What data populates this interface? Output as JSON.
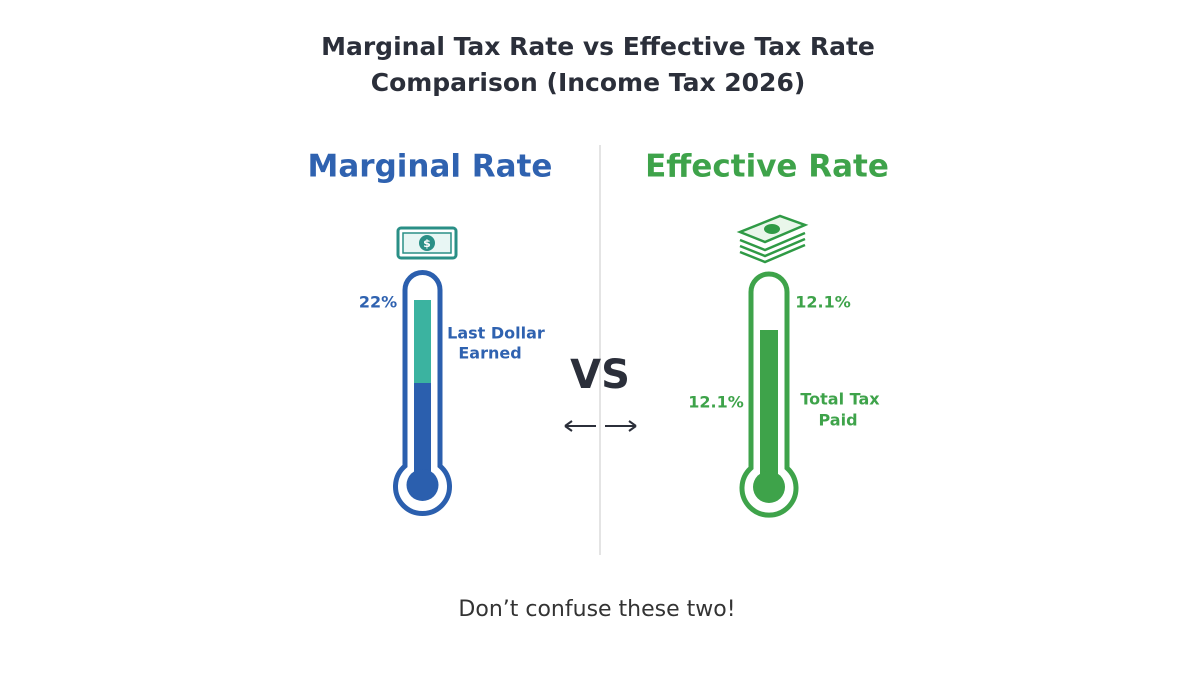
{
  "title": [
    "Marginal Tax Rate vs Effective Tax Rate",
    "Comparison (Income Tax 2026)"
  ],
  "left": {
    "heading": "Marginal Rate",
    "rate": "22%",
    "label": [
      "Last Dollar",
      "Earned"
    ]
  },
  "divider": "VS",
  "right": {
    "heading": "Effective Rate",
    "rate_top": "12.1%",
    "rate_side": "12.1%",
    "label": [
      "Total Tax",
      "Paid"
    ]
  },
  "footer": "Don’t confuse these two!"
}
